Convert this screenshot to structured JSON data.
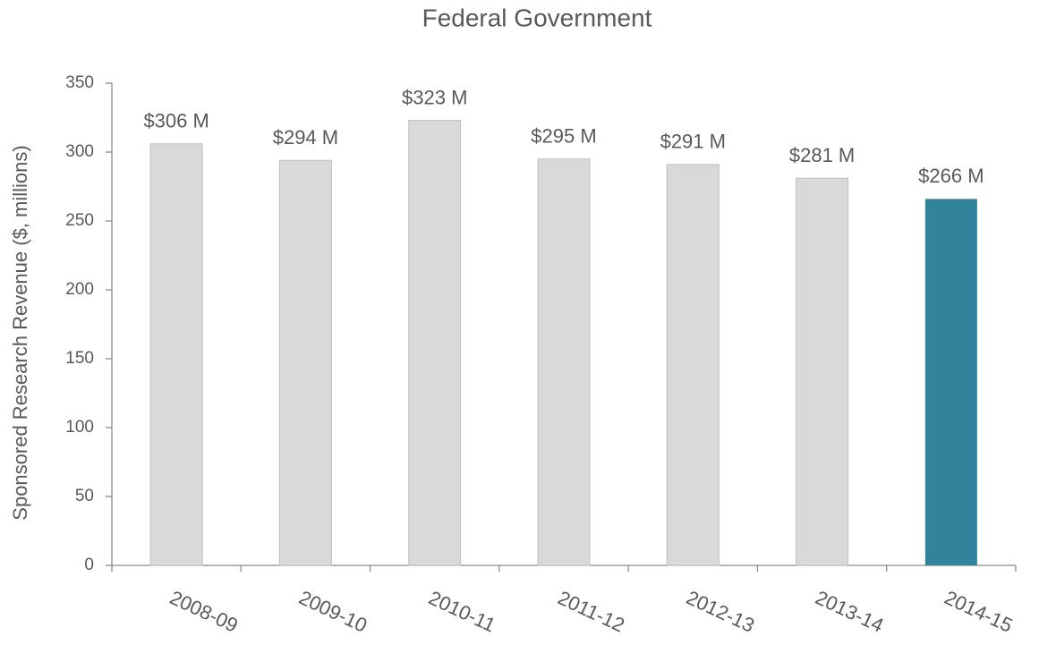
{
  "chart_data": {
    "type": "bar",
    "title": "Federal Government",
    "y_label": "Sponsored Research Revenue ($, millions)",
    "categories": [
      "2008-09",
      "2009-10",
      "2010-11",
      "2011-12",
      "2012-13",
      "2013-14",
      "2014-15"
    ],
    "values": [
      306,
      294,
      323,
      295,
      291,
      281,
      266
    ],
    "value_labels": [
      "$306 M",
      "$294 M",
      "$323 M",
      "$295 M",
      "$291 M",
      "$281 M",
      "$266 M"
    ],
    "colors": [
      "#d9d9d9",
      "#d9d9d9",
      "#d9d9d9",
      "#d9d9d9",
      "#d9d9d9",
      "#d9d9d9",
      "#31849b"
    ],
    "ylim": [
      0,
      350
    ],
    "yticks": [
      0,
      50,
      100,
      150,
      200,
      250,
      300,
      350
    ],
    "grid": false
  }
}
